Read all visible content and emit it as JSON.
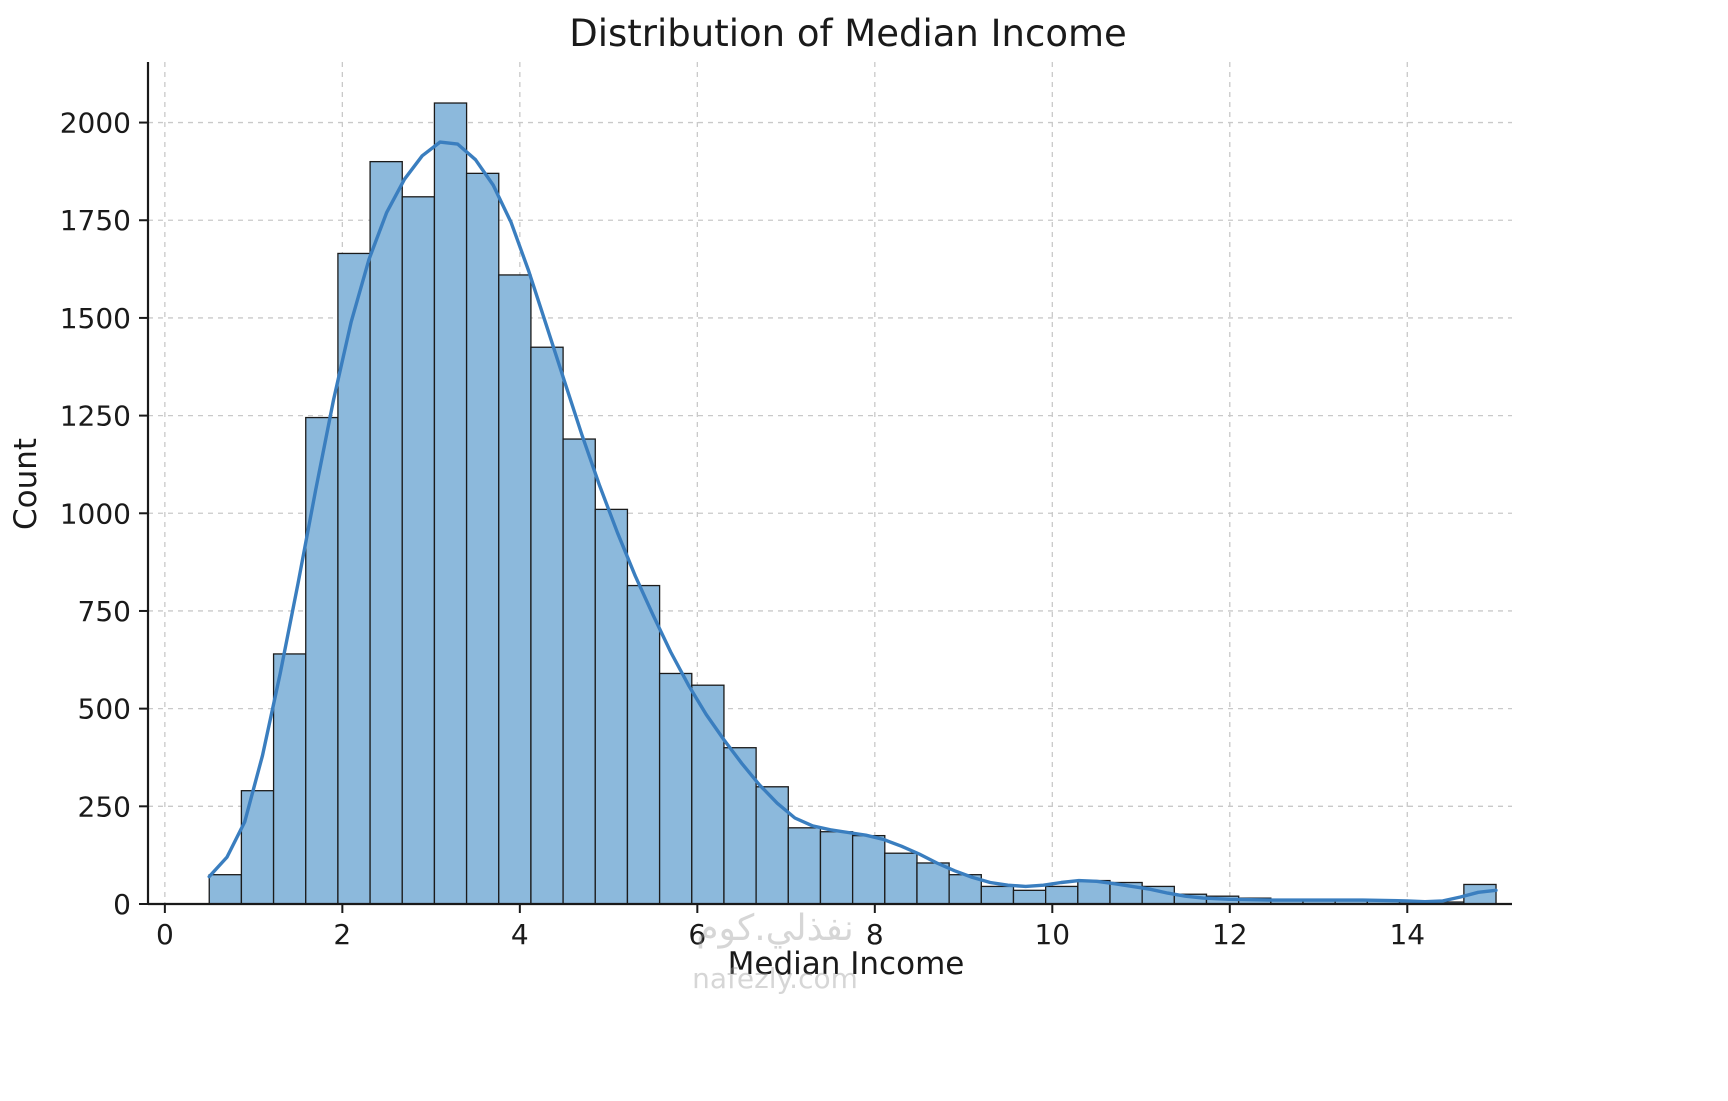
{
  "title": "Distribution of Median Income",
  "watermark": {
    "line1": "نفذلي.كوم",
    "line2": "nafezly.com"
  },
  "chart_data": {
    "type": "bar",
    "subtype": "histogram_with_kde",
    "title": "Distribution of Median Income",
    "xlabel": "Median Income",
    "ylabel": "Count",
    "xlim": [
      -0.19,
      15.18
    ],
    "ylim": [
      0,
      2155
    ],
    "x_ticks": [
      0,
      2,
      4,
      6,
      8,
      10,
      12,
      14
    ],
    "y_ticks": [
      0,
      250,
      500,
      750,
      1000,
      1250,
      1500,
      1750,
      2000
    ],
    "grid": true,
    "grid_style": "dashed",
    "legend": "none",
    "bin_start": 0.5,
    "bin_width": 0.3625,
    "counts": [
      75,
      290,
      640,
      1245,
      1665,
      1900,
      1810,
      2050,
      1870,
      1610,
      1425,
      1190,
      1010,
      815,
      590,
      560,
      400,
      300,
      195,
      185,
      175,
      130,
      105,
      75,
      45,
      35,
      45,
      60,
      55,
      45,
      25,
      20,
      15,
      10,
      8,
      8,
      8,
      5,
      5,
      50
    ],
    "kde_points": [
      [
        0.5,
        70
      ],
      [
        0.7,
        120
      ],
      [
        0.9,
        210
      ],
      [
        1.1,
        380
      ],
      [
        1.3,
        590
      ],
      [
        1.5,
        820
      ],
      [
        1.7,
        1060
      ],
      [
        1.9,
        1290
      ],
      [
        2.1,
        1490
      ],
      [
        2.3,
        1650
      ],
      [
        2.5,
        1770
      ],
      [
        2.7,
        1855
      ],
      [
        2.9,
        1915
      ],
      [
        3.1,
        1950
      ],
      [
        3.3,
        1945
      ],
      [
        3.5,
        1905
      ],
      [
        3.7,
        1840
      ],
      [
        3.9,
        1745
      ],
      [
        4.1,
        1620
      ],
      [
        4.3,
        1480
      ],
      [
        4.5,
        1340
      ],
      [
        4.7,
        1200
      ],
      [
        4.9,
        1070
      ],
      [
        5.1,
        950
      ],
      [
        5.3,
        840
      ],
      [
        5.5,
        740
      ],
      [
        5.7,
        645
      ],
      [
        5.9,
        560
      ],
      [
        6.1,
        485
      ],
      [
        6.3,
        420
      ],
      [
        6.5,
        360
      ],
      [
        6.7,
        305
      ],
      [
        6.9,
        258
      ],
      [
        7.1,
        220
      ],
      [
        7.3,
        200
      ],
      [
        7.5,
        190
      ],
      [
        7.7,
        183
      ],
      [
        7.9,
        176
      ],
      [
        8.1,
        165
      ],
      [
        8.3,
        148
      ],
      [
        8.5,
        128
      ],
      [
        8.7,
        105
      ],
      [
        8.9,
        85
      ],
      [
        9.1,
        68
      ],
      [
        9.3,
        55
      ],
      [
        9.5,
        48
      ],
      [
        9.7,
        45
      ],
      [
        9.9,
        48
      ],
      [
        10.1,
        55
      ],
      [
        10.3,
        60
      ],
      [
        10.5,
        58
      ],
      [
        10.7,
        52
      ],
      [
        10.9,
        45
      ],
      [
        11.1,
        38
      ],
      [
        11.3,
        28
      ],
      [
        11.5,
        20
      ],
      [
        11.7,
        15
      ],
      [
        12.0,
        12
      ],
      [
        12.5,
        10
      ],
      [
        13.0,
        10
      ],
      [
        13.5,
        10
      ],
      [
        14.0,
        8
      ],
      [
        14.2,
        6
      ],
      [
        14.4,
        8
      ],
      [
        14.6,
        18
      ],
      [
        14.8,
        30
      ],
      [
        15.0,
        35
      ]
    ],
    "bar_fill": "#8cb9dc",
    "bar_edge": "#1b1b1b",
    "kde_color": "#3a7ebf",
    "grid_color": "#c9c9c9",
    "spine_color": "#1a1a1a",
    "text_color": "#1a1a1a"
  }
}
